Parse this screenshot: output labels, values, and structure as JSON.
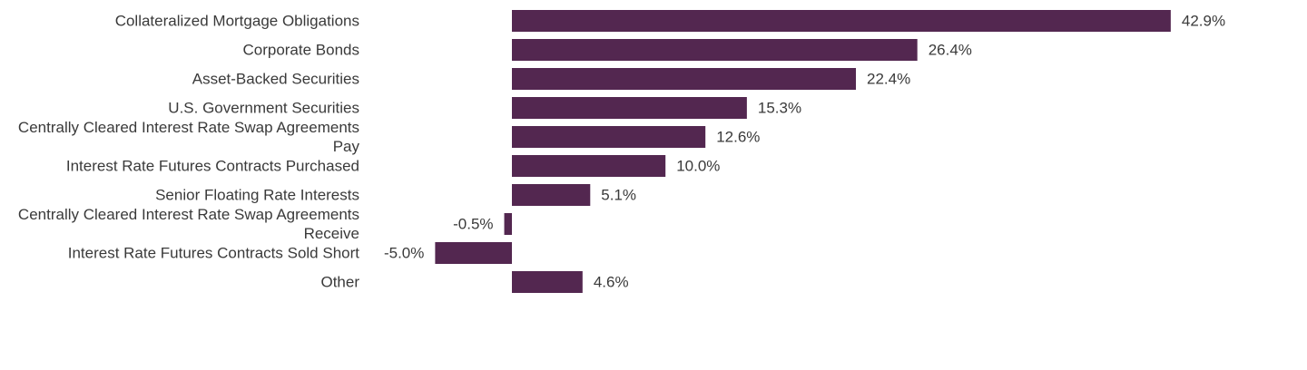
{
  "chart_data": {
    "type": "bar",
    "orientation": "horizontal",
    "color": "#532750",
    "categories": [
      "Collateralized Mortgage Obligations",
      "Corporate Bonds",
      "Asset-Backed Securities",
      "U.S. Government Securities",
      "Centrally Cleared Interest Rate Swap Agreements\nPay",
      "Interest Rate Futures Contracts Purchased",
      "Senior Floating Rate Interests",
      "Centrally Cleared Interest Rate Swap Agreements\nReceive",
      "Interest Rate Futures Contracts Sold Short",
      "Other"
    ],
    "values": [
      42.9,
      26.4,
      22.4,
      15.3,
      12.6,
      10.0,
      5.1,
      -0.5,
      -5.0,
      4.6
    ],
    "value_labels": [
      "42.9%",
      "26.4%",
      "22.4%",
      "15.3%",
      "12.6%",
      "10.0%",
      "5.1%",
      "-0.5%",
      "-5.0%",
      "4.6%"
    ]
  }
}
